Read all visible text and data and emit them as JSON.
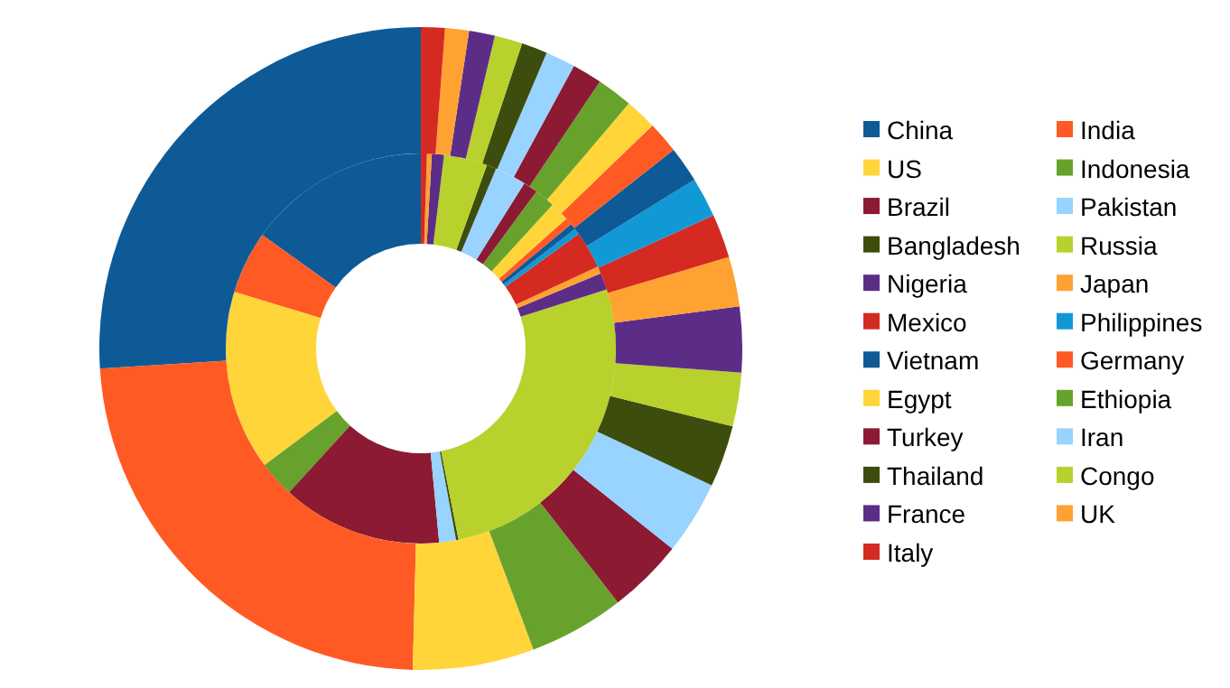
{
  "chart_data": {
    "type": "donut",
    "categories": [
      "China",
      "India",
      "US",
      "Indonesia",
      "Brazil",
      "Pakistan",
      "Bangladesh",
      "Russia",
      "Nigeria",
      "Japan",
      "Mexico",
      "Philippines",
      "Vietnam",
      "Germany",
      "Egypt",
      "Ethiopia",
      "Turkey",
      "Iran",
      "Thailand",
      "Congo",
      "France",
      "UK",
      "Italy"
    ],
    "colors": [
      "#0e5a96",
      "#ff5a24",
      "#ffd53a",
      "#67a22d",
      "#8c1a33",
      "#99d3ff",
      "#3d4d0d",
      "#b8d12c",
      "#5c2d87",
      "#ffa232",
      "#d42a22",
      "#1199d6",
      "#0e5a96",
      "#ff5a24",
      "#ffd53a",
      "#67a22d",
      "#8c1a33",
      "#99d3ff",
      "#3d4d0d",
      "#b8d12c",
      "#5c2d87",
      "#ffa232",
      "#d42a22"
    ],
    "series": [
      {
        "values": [
          15.1,
          5.2,
          14.9,
          3.0,
          13.3,
          1.4,
          0.2,
          26.8,
          1.4,
          0.6,
          3.1,
          0.5,
          0.5,
          0.6,
          1.6,
          1.7,
          1.2,
          2.6,
          0.8,
          3.6,
          1.0,
          0.4,
          0.5
        ]
      },
      {
        "values": [
          26.0,
          23.6,
          6.1,
          4.8,
          3.8,
          3.7,
          3.1,
          2.7,
          3.3,
          2.5,
          2.2,
          2.0,
          1.8,
          1.6,
          1.6,
          1.8,
          1.5,
          1.5,
          1.3,
          1.4,
          1.3,
          1.2,
          1.2
        ]
      }
    ],
    "legend": "right"
  }
}
